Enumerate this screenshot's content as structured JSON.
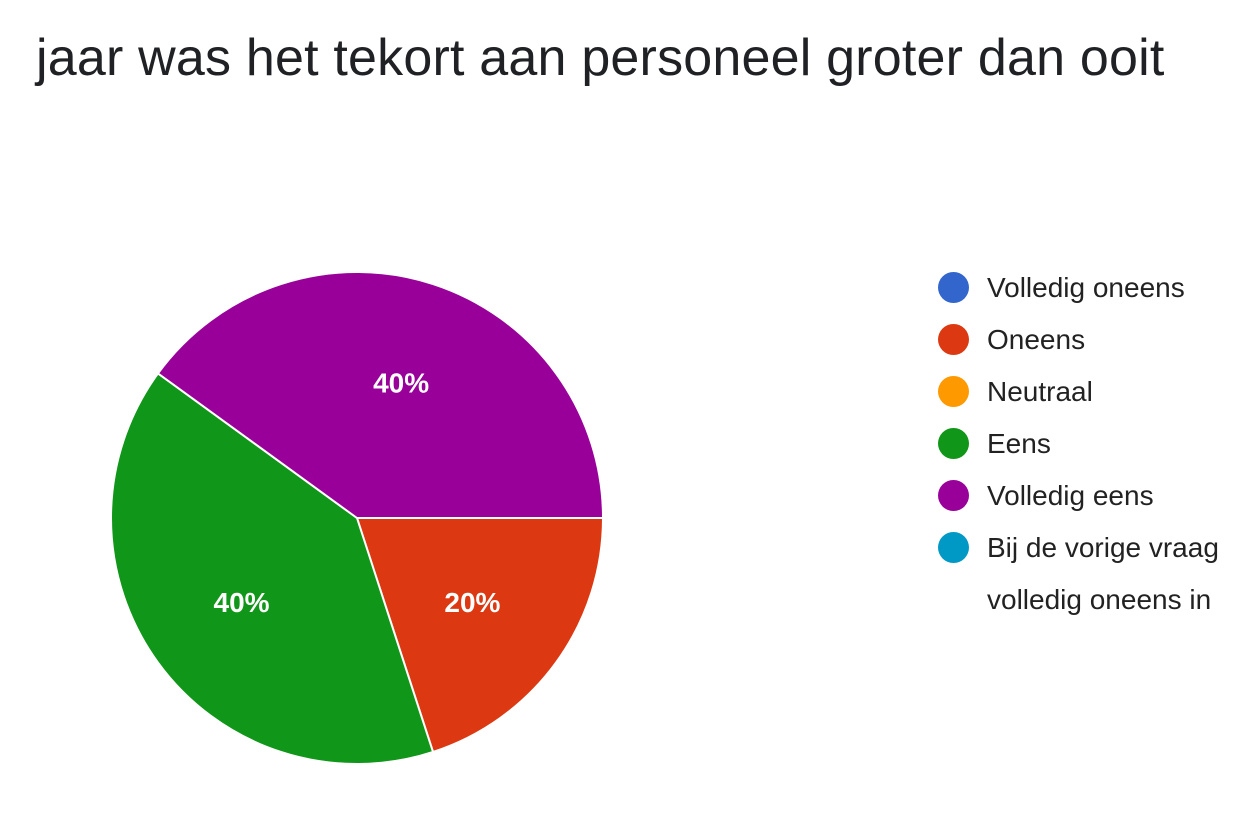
{
  "title": "jaar was het tekort aan personeel groter dan ooit",
  "chart_data": {
    "type": "pie",
    "title": "jaar was het tekort aan personeel groter dan ooit",
    "legend_position": "right",
    "slices": [
      {
        "label": "Volledig oneens",
        "value": 0,
        "color": "#3366cc"
      },
      {
        "label": "Oneens",
        "value": 20,
        "color": "#dc3912"
      },
      {
        "label": "Neutraal",
        "value": 0,
        "color": "#ff9900"
      },
      {
        "label": "Eens",
        "value": 40,
        "color": "#109618"
      },
      {
        "label": "Volledig eens",
        "value": 40,
        "color": "#990099"
      },
      {
        "label": "Bij de vorige vraag\nvolledig oneens in",
        "value": 0,
        "color": "#0099c6"
      }
    ],
    "data_labels": [
      "20%",
      "40%",
      "40%"
    ]
  }
}
